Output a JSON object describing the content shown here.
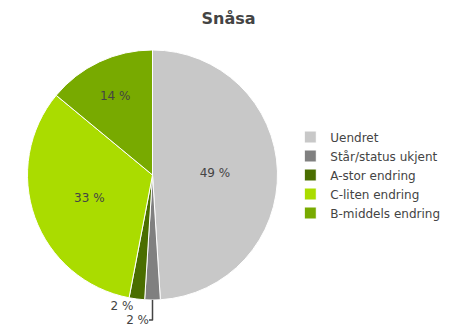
{
  "chart_data": {
    "type": "pie",
    "title": "Snåsa",
    "categories": [
      "Uendret",
      "Står/status ukjent",
      "A-stor endring",
      "C-liten endring",
      "B-middels endring"
    ],
    "values": [
      49,
      2,
      2,
      33,
      14
    ],
    "value_labels": [
      "49 %",
      "2 %",
      "2 %",
      "33 %",
      "14 %"
    ],
    "colors": [
      "#c8c8c8",
      "#808080",
      "#4a6e00",
      "#aadc00",
      "#78aa00"
    ],
    "data_labels": true,
    "legend": "right"
  }
}
